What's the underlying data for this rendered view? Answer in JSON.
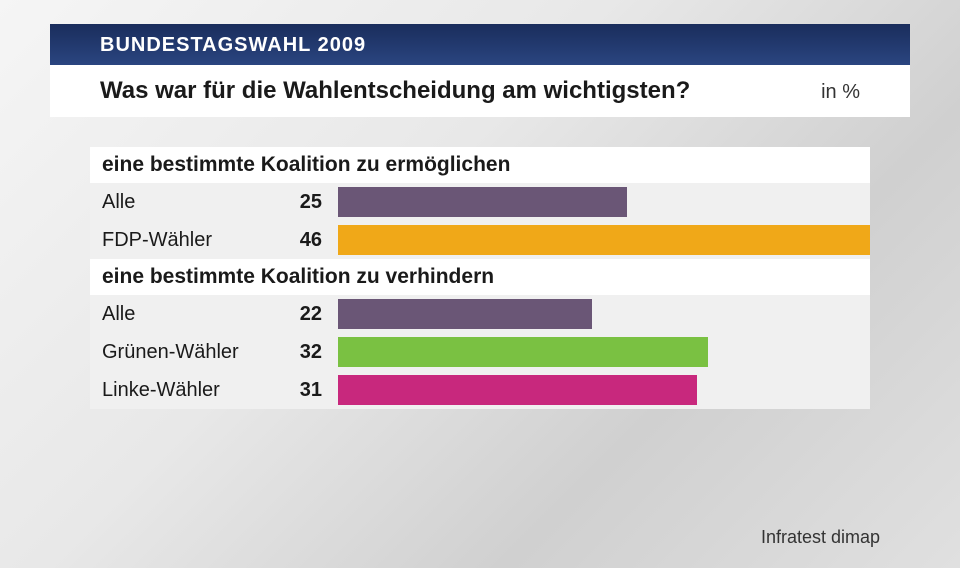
{
  "header": {
    "title": "BUNDESTAGSWAHL 2009"
  },
  "subtitle": {
    "text": "Was war für die Wahlentscheidung am wichtigsten?",
    "unit": "in %"
  },
  "chart": {
    "type": "bar",
    "max_value": 46,
    "background_color": "#f0f0f0",
    "section_header_bg": "#ffffff",
    "sections": [
      {
        "title": "eine bestimmte Koalition zu ermöglichen",
        "rows": [
          {
            "label": "Alle",
            "value": 25,
            "color": "#6a5676"
          },
          {
            "label": "FDP-Wähler",
            "value": 46,
            "color": "#f0a818"
          }
        ]
      },
      {
        "title": "eine bestimmte Koalition zu verhindern",
        "rows": [
          {
            "label": "Alle",
            "value": 22,
            "color": "#6a5676"
          },
          {
            "label": "Grünen-Wähler",
            "value": 32,
            "color": "#7ac142"
          },
          {
            "label": "Linke-Wähler",
            "value": 31,
            "color": "#c8287d"
          }
        ]
      }
    ]
  },
  "footer": {
    "source": "Infratest dimap"
  },
  "colors": {
    "header_bg_start": "#1a2d5c",
    "header_bg_end": "#2a4580",
    "header_text": "#ffffff",
    "subtitle_bg": "#ffffff",
    "text_primary": "#1a1a1a",
    "text_secondary": "#333333"
  },
  "typography": {
    "header_fontsize": 20,
    "subtitle_fontsize": 24,
    "unit_fontsize": 20,
    "section_fontsize": 21,
    "label_fontsize": 20,
    "value_fontsize": 20,
    "source_fontsize": 18
  }
}
